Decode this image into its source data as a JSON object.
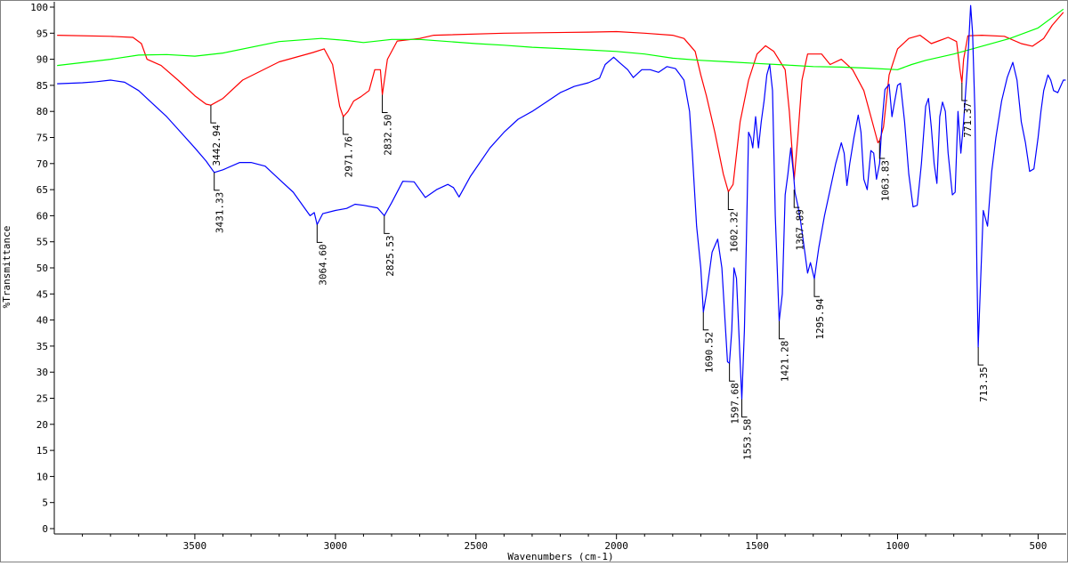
{
  "chart_data": {
    "type": "line",
    "title": "",
    "xlabel": "Wavenumbers (cm-1)",
    "ylabel": "%Transmittance",
    "xlim": [
      4000,
      400
    ],
    "ylim": [
      0,
      100
    ],
    "x_reversed": true,
    "grid": false,
    "x_ticks": [
      3500,
      3000,
      2500,
      2000,
      1500,
      1000,
      500
    ],
    "y_ticks": [
      0,
      5,
      10,
      15,
      20,
      25,
      30,
      35,
      40,
      45,
      50,
      55,
      60,
      65,
      70,
      75,
      80,
      85,
      90,
      95,
      100
    ],
    "series": [
      {
        "color": "#ff0000",
        "points": [
          [
            3990,
            94.6
          ],
          [
            3800,
            94.4
          ],
          [
            3720,
            94.2
          ],
          [
            3690,
            93
          ],
          [
            3670,
            90
          ],
          [
            3620,
            88.8
          ],
          [
            3560,
            86
          ],
          [
            3500,
            83
          ],
          [
            3460,
            81.4
          ],
          [
            3443,
            81.2
          ],
          [
            3400,
            82.5
          ],
          [
            3330,
            86
          ],
          [
            3200,
            89.5
          ],
          [
            3080,
            91.3
          ],
          [
            3040,
            92
          ],
          [
            3010,
            89
          ],
          [
            2985,
            81
          ],
          [
            2972,
            79
          ],
          [
            2955,
            80
          ],
          [
            2935,
            82
          ],
          [
            2910,
            82.8
          ],
          [
            2880,
            84
          ],
          [
            2860,
            88
          ],
          [
            2840,
            88
          ],
          [
            2833,
            83.2
          ],
          [
            2815,
            90
          ],
          [
            2780,
            93.5
          ],
          [
            2700,
            94
          ],
          [
            2650,
            94.6
          ],
          [
            2400,
            95
          ],
          [
            2100,
            95.2
          ],
          [
            2000,
            95.3
          ],
          [
            1900,
            95
          ],
          [
            1800,
            94.6
          ],
          [
            1760,
            94
          ],
          [
            1720,
            91.5
          ],
          [
            1700,
            87
          ],
          [
            1680,
            83
          ],
          [
            1650,
            76
          ],
          [
            1620,
            68
          ],
          [
            1602,
            64.6
          ],
          [
            1585,
            66
          ],
          [
            1560,
            78
          ],
          [
            1530,
            86
          ],
          [
            1500,
            91
          ],
          [
            1470,
            92.6
          ],
          [
            1440,
            91.5
          ],
          [
            1400,
            88
          ],
          [
            1385,
            80
          ],
          [
            1368,
            66.9
          ],
          [
            1355,
            75
          ],
          [
            1340,
            86
          ],
          [
            1320,
            91
          ],
          [
            1300,
            91
          ],
          [
            1270,
            91
          ],
          [
            1240,
            89
          ],
          [
            1200,
            90
          ],
          [
            1160,
            88
          ],
          [
            1120,
            84
          ],
          [
            1090,
            78
          ],
          [
            1070,
            74
          ],
          [
            1064,
            74.4
          ],
          [
            1050,
            77
          ],
          [
            1030,
            87
          ],
          [
            1000,
            92
          ],
          [
            960,
            94
          ],
          [
            920,
            94.6
          ],
          [
            880,
            93
          ],
          [
            850,
            93.6
          ],
          [
            820,
            94.2
          ],
          [
            790,
            93.4
          ],
          [
            778,
            88
          ],
          [
            771,
            85.5
          ],
          [
            765,
            90
          ],
          [
            750,
            94.5
          ],
          [
            700,
            94.6
          ],
          [
            620,
            94.4
          ],
          [
            560,
            93
          ],
          [
            520,
            92.5
          ],
          [
            480,
            94
          ],
          [
            450,
            96.5
          ],
          [
            410,
            99
          ]
        ]
      },
      {
        "color": "#00ff00",
        "points": [
          [
            3990,
            88.8
          ],
          [
            3800,
            90
          ],
          [
            3700,
            90.8
          ],
          [
            3600,
            90.9
          ],
          [
            3500,
            90.6
          ],
          [
            3400,
            91.2
          ],
          [
            3200,
            93.4
          ],
          [
            3050,
            94
          ],
          [
            2960,
            93.6
          ],
          [
            2900,
            93.2
          ],
          [
            2800,
            93.8
          ],
          [
            2700,
            93.8
          ],
          [
            2500,
            93
          ],
          [
            2400,
            92.7
          ],
          [
            2300,
            92.3
          ],
          [
            2100,
            91.8
          ],
          [
            2000,
            91.5
          ],
          [
            1900,
            91
          ],
          [
            1800,
            90.2
          ],
          [
            1700,
            89.8
          ],
          [
            1600,
            89.5
          ],
          [
            1500,
            89.2
          ],
          [
            1400,
            88.9
          ],
          [
            1300,
            88.6
          ],
          [
            1200,
            88.5
          ],
          [
            1100,
            88.3
          ],
          [
            1000,
            88
          ],
          [
            950,
            89
          ],
          [
            900,
            89.8
          ],
          [
            800,
            91
          ],
          [
            700,
            92.5
          ],
          [
            600,
            94
          ],
          [
            500,
            96
          ],
          [
            450,
            98
          ],
          [
            410,
            99.6
          ]
        ]
      },
      {
        "color": "#0000ff",
        "points": [
          [
            3990,
            85.3
          ],
          [
            3900,
            85.5
          ],
          [
            3850,
            85.7
          ],
          [
            3800,
            86
          ],
          [
            3750,
            85.6
          ],
          [
            3700,
            84
          ],
          [
            3650,
            81.5
          ],
          [
            3600,
            79
          ],
          [
            3550,
            76
          ],
          [
            3500,
            73
          ],
          [
            3460,
            70.5
          ],
          [
            3431,
            68.3
          ],
          [
            3400,
            68.8
          ],
          [
            3340,
            70.2
          ],
          [
            3300,
            70.2
          ],
          [
            3250,
            69.5
          ],
          [
            3200,
            67
          ],
          [
            3150,
            64.5
          ],
          [
            3110,
            61.5
          ],
          [
            3090,
            60
          ],
          [
            3075,
            60.6
          ],
          [
            3065,
            58.3
          ],
          [
            3045,
            60.4
          ],
          [
            3000,
            61
          ],
          [
            2960,
            61.4
          ],
          [
            2930,
            62.2
          ],
          [
            2900,
            62
          ],
          [
            2850,
            61.5
          ],
          [
            2826,
            60
          ],
          [
            2800,
            62.5
          ],
          [
            2760,
            66.6
          ],
          [
            2720,
            66.5
          ],
          [
            2680,
            63.5
          ],
          [
            2640,
            65
          ],
          [
            2600,
            66
          ],
          [
            2580,
            65.4
          ],
          [
            2560,
            63.6
          ],
          [
            2520,
            67.5
          ],
          [
            2450,
            73
          ],
          [
            2400,
            76
          ],
          [
            2350,
            78.5
          ],
          [
            2300,
            80
          ],
          [
            2250,
            81.8
          ],
          [
            2200,
            83.6
          ],
          [
            2150,
            84.8
          ],
          [
            2100,
            85.5
          ],
          [
            2060,
            86.4
          ],
          [
            2040,
            89
          ],
          [
            2010,
            90.4
          ],
          [
            1990,
            89.4
          ],
          [
            1960,
            88
          ],
          [
            1940,
            86.5
          ],
          [
            1910,
            88
          ],
          [
            1880,
            88
          ],
          [
            1850,
            87.5
          ],
          [
            1820,
            88.6
          ],
          [
            1790,
            88.2
          ],
          [
            1760,
            86
          ],
          [
            1740,
            80
          ],
          [
            1730,
            72
          ],
          [
            1715,
            58
          ],
          [
            1700,
            50
          ],
          [
            1691,
            41.5
          ],
          [
            1680,
            45
          ],
          [
            1660,
            53
          ],
          [
            1640,
            55.5
          ],
          [
            1625,
            50
          ],
          [
            1605,
            32
          ],
          [
            1598,
            31.7
          ],
          [
            1590,
            38
          ],
          [
            1582,
            50
          ],
          [
            1573,
            48
          ],
          [
            1565,
            38
          ],
          [
            1554,
            24.8
          ],
          [
            1545,
            38
          ],
          [
            1538,
            55
          ],
          [
            1530,
            76
          ],
          [
            1522,
            75
          ],
          [
            1515,
            73
          ],
          [
            1505,
            79
          ],
          [
            1495,
            73
          ],
          [
            1485,
            78
          ],
          [
            1475,
            82
          ],
          [
            1465,
            87
          ],
          [
            1455,
            89
          ],
          [
            1445,
            84
          ],
          [
            1435,
            60
          ],
          [
            1421,
            39.8
          ],
          [
            1410,
            45
          ],
          [
            1400,
            64
          ],
          [
            1390,
            68
          ],
          [
            1380,
            73
          ],
          [
            1370,
            68
          ],
          [
            1365,
            64.5
          ],
          [
            1355,
            62
          ],
          [
            1345,
            59
          ],
          [
            1330,
            53
          ],
          [
            1320,
            49
          ],
          [
            1310,
            51
          ],
          [
            1296,
            47.9
          ],
          [
            1280,
            54
          ],
          [
            1260,
            60
          ],
          [
            1240,
            65
          ],
          [
            1220,
            70
          ],
          [
            1200,
            74
          ],
          [
            1190,
            72
          ],
          [
            1180,
            65.8
          ],
          [
            1170,
            70
          ],
          [
            1155,
            75
          ],
          [
            1140,
            79.3
          ],
          [
            1130,
            76
          ],
          [
            1120,
            67
          ],
          [
            1108,
            65
          ],
          [
            1095,
            72.5
          ],
          [
            1085,
            72
          ],
          [
            1075,
            67
          ],
          [
            1064,
            70
          ],
          [
            1055,
            78
          ],
          [
            1045,
            84.2
          ],
          [
            1030,
            85.2
          ],
          [
            1020,
            79
          ],
          [
            1010,
            82
          ],
          [
            1000,
            85
          ],
          [
            990,
            85.4
          ],
          [
            975,
            78
          ],
          [
            960,
            68
          ],
          [
            945,
            61.7
          ],
          [
            930,
            62
          ],
          [
            915,
            70
          ],
          [
            900,
            81
          ],
          [
            890,
            82.5
          ],
          [
            880,
            77
          ],
          [
            870,
            70
          ],
          [
            860,
            66.2
          ],
          [
            850,
            79
          ],
          [
            840,
            81.8
          ],
          [
            830,
            80
          ],
          [
            820,
            72
          ],
          [
            805,
            64
          ],
          [
            795,
            64.5
          ],
          [
            785,
            80
          ],
          [
            775,
            72
          ],
          [
            765,
            78
          ],
          [
            750,
            90
          ],
          [
            740,
            100.3
          ],
          [
            733,
            95
          ],
          [
            725,
            80
          ],
          [
            718,
            50
          ],
          [
            713,
            34.8
          ],
          [
            705,
            47
          ],
          [
            695,
            61
          ],
          [
            680,
            58
          ],
          [
            665,
            68.5
          ],
          [
            650,
            75
          ],
          [
            630,
            82
          ],
          [
            610,
            86.5
          ],
          [
            590,
            89.4
          ],
          [
            575,
            86
          ],
          [
            560,
            78
          ],
          [
            545,
            74
          ],
          [
            530,
            68.5
          ],
          [
            515,
            69
          ],
          [
            500,
            75
          ],
          [
            490,
            80
          ],
          [
            480,
            84
          ],
          [
            465,
            87
          ],
          [
            455,
            86
          ],
          [
            445,
            84
          ],
          [
            430,
            83.6
          ],
          [
            410,
            86
          ],
          [
            402,
            86
          ]
        ]
      }
    ],
    "annotations": [
      {
        "label": "3442.94",
        "x": 3443,
        "y": 81.2,
        "series": 0
      },
      {
        "label": "2971.76",
        "x": 2972,
        "y": 79,
        "series": 0
      },
      {
        "label": "2832.50",
        "x": 2833,
        "y": 83.2,
        "series": 0
      },
      {
        "label": "1602.32",
        "x": 1602,
        "y": 64.6,
        "series": 0
      },
      {
        "label": "1367.89",
        "x": 1368,
        "y": 65,
        "series": 0
      },
      {
        "label": "1063.83",
        "x": 1064,
        "y": 74.4,
        "series": 0
      },
      {
        "label": "771.37",
        "x": 771,
        "y": 85.5,
        "series": 0
      },
      {
        "label": "3431.33",
        "x": 3431,
        "y": 68.3,
        "series": 2
      },
      {
        "label": "3064.60",
        "x": 3065,
        "y": 58.3,
        "series": 2
      },
      {
        "label": "2825.53",
        "x": 2826,
        "y": 60,
        "series": 2
      },
      {
        "label": "1690.52",
        "x": 1691,
        "y": 41.5,
        "series": 2
      },
      {
        "label": "1597.68",
        "x": 1598,
        "y": 31.7,
        "series": 2
      },
      {
        "label": "1553.58",
        "x": 1554,
        "y": 24.8,
        "series": 2
      },
      {
        "label": "1421.28",
        "x": 1421,
        "y": 39.8,
        "series": 2
      },
      {
        "label": "1295.94",
        "x": 1296,
        "y": 47.9,
        "series": 2
      },
      {
        "label": "713.35",
        "x": 713,
        "y": 34.8,
        "series": 2
      }
    ]
  }
}
